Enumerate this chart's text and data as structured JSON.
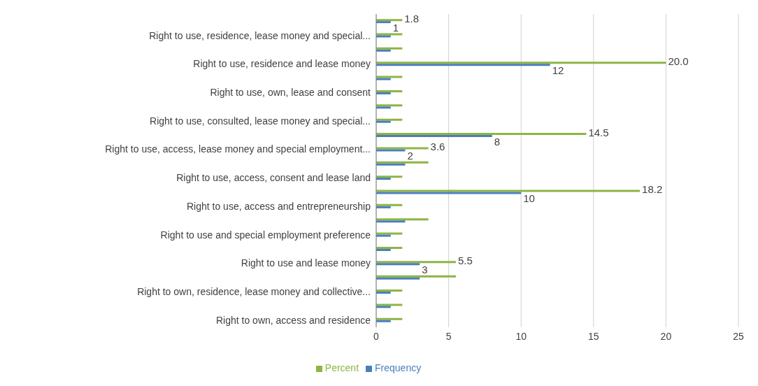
{
  "chart_data": {
    "type": "bar",
    "orientation": "horizontal",
    "categories": [
      null,
      "Right to use, residence, lease money and special...",
      null,
      "Right to use, residence  and lease money",
      null,
      "Right to use, own, lease and consent",
      null,
      "Right to use, consulted, lease money and  special...",
      null,
      "Right to use, access, lease money and special employment...",
      null,
      "Right to use, access, consent and lease land",
      null,
      "Right to use, access and entrepreneurship",
      null,
      "Right to use and special employment preference",
      null,
      "Right to use and lease money",
      null,
      "Right to own, residence,  lease money and collective...",
      null,
      "Right to own, access and residence"
    ],
    "series": [
      {
        "name": "Percent",
        "color": "#8db543",
        "values": [
          1.8,
          1.8,
          1.8,
          20.0,
          1.8,
          1.8,
          1.8,
          1.8,
          14.5,
          3.6,
          3.6,
          1.8,
          18.2,
          1.8,
          3.6,
          1.8,
          1.8,
          5.5,
          5.5,
          1.8,
          1.8,
          1.8
        ],
        "value_labels": [
          "1.8",
          null,
          null,
          "20.0",
          null,
          null,
          null,
          null,
          "14.5",
          "3.6",
          null,
          null,
          "18.2",
          null,
          null,
          null,
          null,
          "5.5",
          null,
          null,
          null,
          null
        ]
      },
      {
        "name": "Frequency",
        "color": "#4a7ebb",
        "values": [
          1,
          1,
          1,
          12,
          1,
          1,
          1,
          1,
          8,
          2,
          2,
          1,
          10,
          1,
          2,
          1,
          1,
          3,
          3,
          1,
          1,
          1
        ],
        "value_labels": [
          "1",
          null,
          null,
          "12",
          null,
          null,
          null,
          null,
          "8",
          "2",
          null,
          null,
          "10",
          null,
          null,
          null,
          null,
          "3",
          null,
          null,
          null,
          null
        ]
      }
    ],
    "xlim": [
      0,
      25
    ],
    "xticks": [
      0,
      5,
      10,
      15,
      20,
      25
    ],
    "grid": "x",
    "legend": "bottom"
  }
}
